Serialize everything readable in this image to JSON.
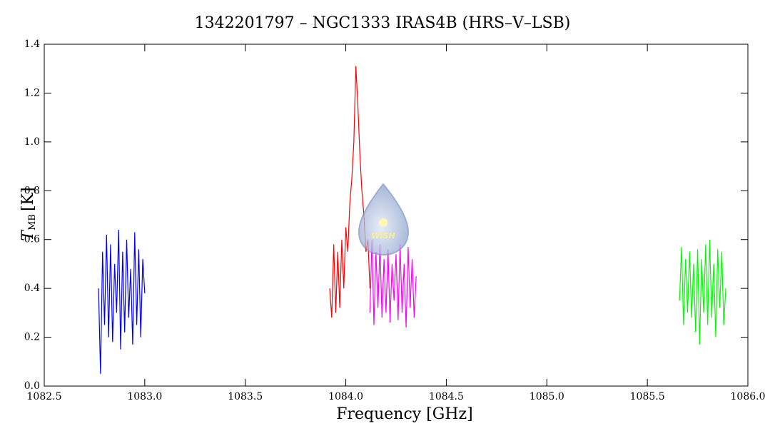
{
  "chart_data": {
    "type": "line",
    "title": "1342201797 – NGC1333 IRAS4B (HRS–V–LSB)",
    "xlabel": "Frequency [GHz]",
    "ylabel": {
      "symbol": "T",
      "subscript": "MB",
      "unit": "[K]"
    },
    "logo_text": "WISH",
    "xlim": [
      1082.5,
      1086.0
    ],
    "ylim": [
      0,
      1.4
    ],
    "xticks": [
      {
        "value": 1082.5,
        "label": "1082.5"
      },
      {
        "value": 1083,
        "label": "1083.0"
      },
      {
        "value": 1083.5,
        "label": "1083.5"
      },
      {
        "value": 1084,
        "label": "1084.0"
      },
      {
        "value": 1084.5,
        "label": "1084.5"
      },
      {
        "value": 1085,
        "label": "1085.0"
      },
      {
        "value": 1085.5,
        "label": "1085.5"
      },
      {
        "value": 1086,
        "label": "1086.0"
      }
    ],
    "yticks": [
      {
        "value": 0,
        "label": "0.0"
      },
      0.2,
      0.4,
      0.6,
      0.8,
      {
        "value": 1,
        "label": "1.0"
      },
      1.2,
      1.4
    ],
    "series": [
      {
        "color": "#0000ff",
        "x": [
          1082.77,
          1082.78,
          1082.79,
          1082.8,
          1082.81,
          1082.82,
          1082.83,
          1082.84,
          1082.85,
          1082.86,
          1082.87,
          1082.88,
          1082.89,
          1082.9,
          1082.91,
          1082.92,
          1082.93,
          1082.94,
          1082.95,
          1082.96,
          1082.97,
          1082.98,
          1082.99,
          1083.0
        ],
        "values": [
          0.4,
          0.05,
          0.55,
          0.25,
          0.62,
          0.2,
          0.58,
          0.18,
          0.5,
          0.3,
          0.64,
          0.15,
          0.55,
          0.22,
          0.6,
          0.28,
          0.48,
          0.17,
          0.63,
          0.25,
          0.56,
          0.2,
          0.52,
          0.38
        ]
      },
      {
        "color": "#ff0000",
        "x": [
          1083.92,
          1083.93,
          1083.94,
          1083.95,
          1083.96,
          1083.97,
          1083.98,
          1083.99,
          1084.0,
          1084.01,
          1084.02,
          1084.03,
          1084.04,
          1084.05,
          1084.06,
          1084.07,
          1084.08,
          1084.09,
          1084.1,
          1084.11,
          1084.12
        ],
        "values": [
          0.4,
          0.28,
          0.58,
          0.3,
          0.55,
          0.32,
          0.6,
          0.4,
          0.65,
          0.55,
          0.75,
          0.85,
          1.0,
          1.31,
          1.15,
          0.95,
          0.8,
          0.7,
          0.55,
          0.6,
          0.4
        ]
      },
      {
        "color": "#ff00ff",
        "x": [
          1084.12,
          1084.13,
          1084.14,
          1084.15,
          1084.16,
          1084.17,
          1084.18,
          1084.19,
          1084.2,
          1084.21,
          1084.22,
          1084.23,
          1084.24,
          1084.25,
          1084.26,
          1084.27,
          1084.28,
          1084.29,
          1084.3,
          1084.31,
          1084.32,
          1084.33,
          1084.34,
          1084.35
        ],
        "values": [
          0.3,
          0.6,
          0.25,
          0.55,
          0.32,
          0.58,
          0.28,
          0.52,
          0.3,
          0.56,
          0.26,
          0.5,
          0.35,
          0.54,
          0.27,
          0.58,
          0.3,
          0.5,
          0.24,
          0.57,
          0.32,
          0.52,
          0.28,
          0.45
        ]
      },
      {
        "color": "#00ff00",
        "x": [
          1085.66,
          1085.67,
          1085.68,
          1085.69,
          1085.7,
          1085.71,
          1085.72,
          1085.73,
          1085.74,
          1085.75,
          1085.76,
          1085.77,
          1085.78,
          1085.79,
          1085.8,
          1085.81,
          1085.82,
          1085.83,
          1085.84,
          1085.85,
          1085.86,
          1085.87,
          1085.88,
          1085.89
        ],
        "values": [
          0.35,
          0.57,
          0.25,
          0.52,
          0.3,
          0.55,
          0.28,
          0.5,
          0.22,
          0.56,
          0.17,
          0.52,
          0.3,
          0.58,
          0.25,
          0.6,
          0.28,
          0.5,
          0.2,
          0.56,
          0.32,
          0.55,
          0.25,
          0.4
        ]
      }
    ]
  }
}
